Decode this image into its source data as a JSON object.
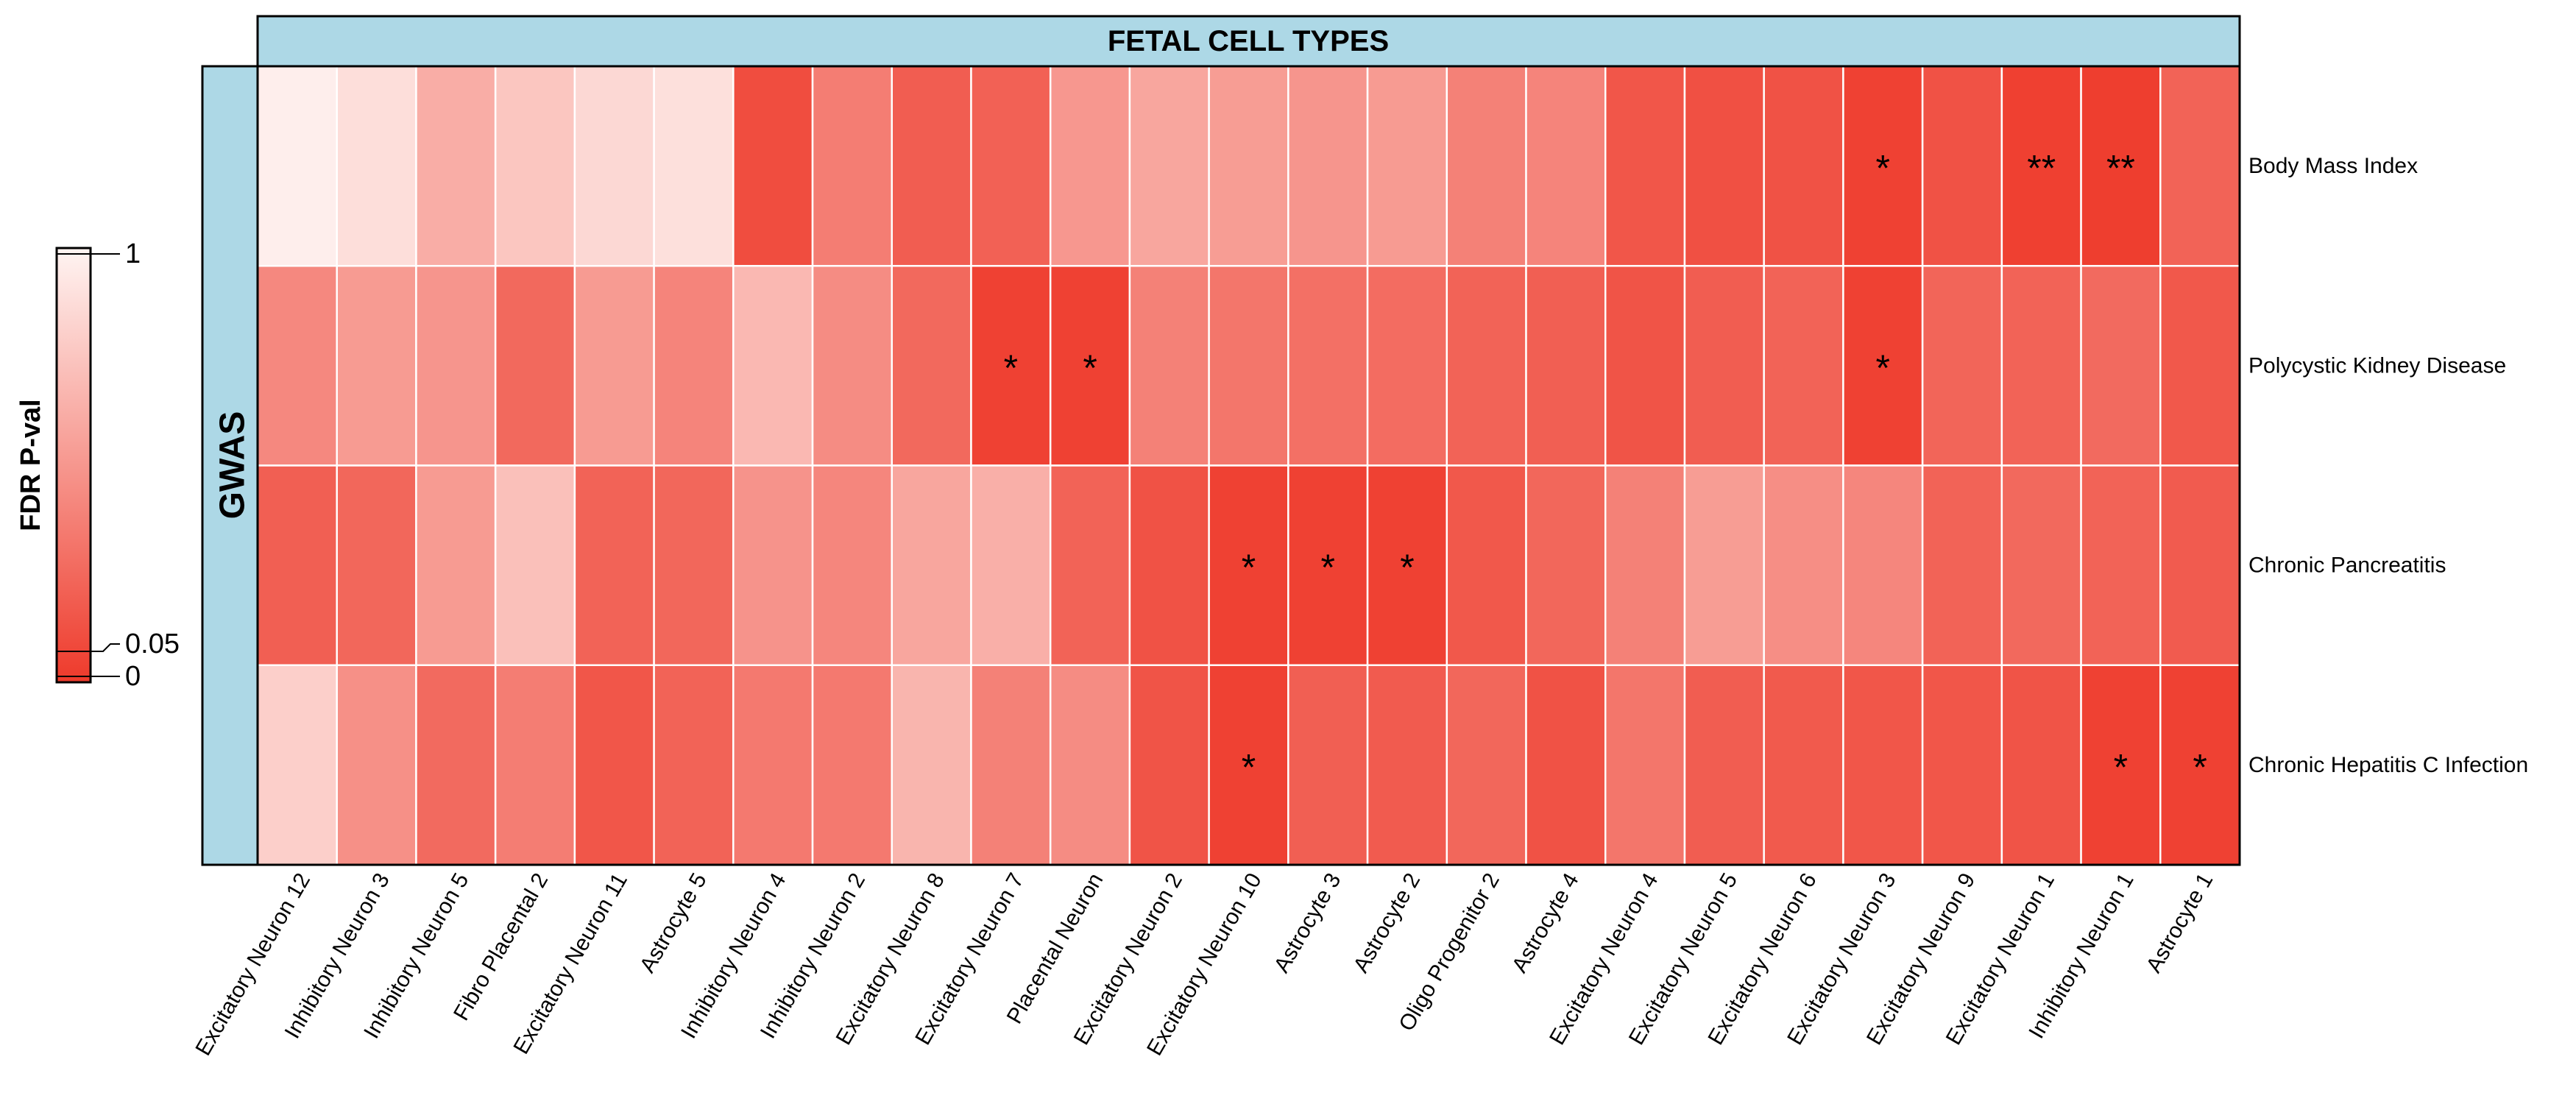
{
  "chart_data": {
    "type": "heatmap",
    "title": "FETAL CELL TYPES",
    "row_group_label": "GWAS",
    "legend": {
      "title": "FDR P-val",
      "ticks": [
        "1",
        "0.05",
        "0"
      ],
      "colors": {
        "low": "#ee3a2b",
        "high": "#fff4f2"
      }
    },
    "columns": [
      "Excitatory Neuron 12",
      "Inhibitory Neuron 3",
      "Inhibitory Neuron 5",
      "Fibro Placental 2",
      "Excitatory Neuron 11",
      "Astrocyte 5",
      "Inhibitory Neuron 4",
      "Inhibitory Neuron 2",
      "Excitatory Neuron 8",
      "Excitatory Neuron 7",
      "Placental Neuron",
      "Excitatory Neuron 2",
      "Excitatory Neuron 10",
      "Astrocyte 3",
      "Astrocyte 2",
      "Oligo Progenitor 2",
      "Astrocyte 4",
      "Excitatory Neuron 4",
      "Excitatory Neuron 5",
      "Excitatory Neuron 6",
      "Excitatory Neuron 3",
      "Excitatory Neuron 9",
      "Excitatory Neuron 1",
      "Inhibitory Neuron 1",
      "Astrocyte 1"
    ],
    "rows": [
      "Body Mass Index",
      "Polycystic Kidney Disease",
      "Chronic Pancreatitis",
      "Chronic Hepatitis C Infection"
    ],
    "values": [
      [
        0.97,
        0.88,
        0.62,
        0.75,
        0.85,
        0.89,
        0.1,
        0.36,
        0.19,
        0.21,
        0.5,
        0.58,
        0.53,
        0.49,
        0.52,
        0.38,
        0.4,
        0.15,
        0.12,
        0.13,
        0.04,
        0.13,
        0.03,
        0.02,
        0.22
      ],
      [
        0.42,
        0.52,
        0.49,
        0.25,
        0.52,
        0.4,
        0.68,
        0.44,
        0.25,
        0.04,
        0.04,
        0.38,
        0.32,
        0.29,
        0.27,
        0.22,
        0.2,
        0.14,
        0.19,
        0.22,
        0.04,
        0.23,
        0.22,
        0.26,
        0.16
      ],
      [
        0.2,
        0.24,
        0.52,
        0.72,
        0.22,
        0.24,
        0.48,
        0.41,
        0.58,
        0.63,
        0.22,
        0.13,
        0.04,
        0.04,
        0.04,
        0.16,
        0.24,
        0.38,
        0.53,
        0.45,
        0.41,
        0.22,
        0.25,
        0.22,
        0.18
      ],
      [
        0.8,
        0.46,
        0.26,
        0.36,
        0.15,
        0.22,
        0.34,
        0.34,
        0.66,
        0.38,
        0.44,
        0.14,
        0.04,
        0.2,
        0.18,
        0.24,
        0.13,
        0.32,
        0.19,
        0.17,
        0.15,
        0.15,
        0.14,
        0.04,
        0.04
      ]
    ],
    "annotations": [
      [
        "",
        "",
        "",
        "",
        "",
        "",
        "",
        "",
        "",
        "",
        "",
        "",
        "",
        "",
        "",
        "",
        "",
        "",
        "",
        "",
        "*",
        "",
        "**",
        "**",
        ""
      ],
      [
        "",
        "",
        "",
        "",
        "",
        "",
        "",
        "",
        "",
        "*",
        "*",
        "",
        "",
        "",
        "",
        "",
        "",
        "",
        "",
        "",
        "*",
        "",
        "",
        "",
        ""
      ],
      [
        "",
        "",
        "",
        "",
        "",
        "",
        "",
        "",
        "",
        "",
        "",
        "",
        "*",
        "*",
        "*",
        "",
        "",
        "",
        "",
        "",
        "",
        "",
        "",
        "",
        ""
      ],
      [
        "",
        "",
        "",
        "",
        "",
        "",
        "",
        "",
        "",
        "",
        "",
        "",
        "*",
        "",
        "",
        "",
        "",
        "",
        "",
        "",
        "",
        "",
        "",
        "*",
        "*"
      ]
    ],
    "accent_color": "#add8e6"
  }
}
